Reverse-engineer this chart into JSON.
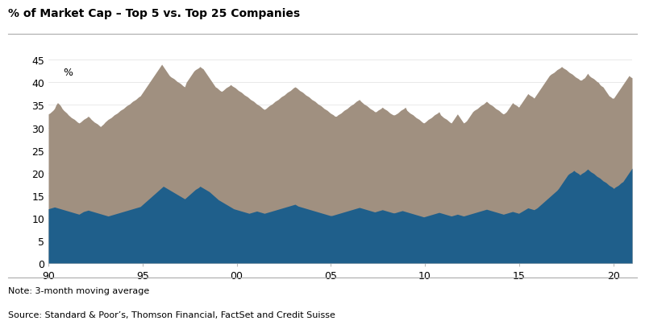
{
  "title": "% of Market Cap – Top 5 vs. Top 25 Companies",
  "ylabel_text": "%",
  "note": "Note: 3-month moving average",
  "source": "Source: Standard & Poor’s, Thomson Financial, FactSet and Credit Suisse",
  "top5_color": "#1f5f8b",
  "top25_color": "#a09080",
  "background_color": "#ffffff",
  "xlim": [
    1990.0,
    2021.0
  ],
  "ylim": [
    0,
    46
  ],
  "yticks": [
    0,
    5,
    10,
    15,
    20,
    25,
    30,
    35,
    40,
    45
  ],
  "xticks": [
    1990,
    1995,
    2000,
    2005,
    2010,
    2015,
    2020
  ],
  "xticklabels": [
    "90",
    "95",
    "00",
    "05",
    "10",
    "15",
    "20"
  ],
  "top25_monthly": [
    33.0,
    33.2,
    33.5,
    33.8,
    34.2,
    35.0,
    35.5,
    35.2,
    34.8,
    34.2,
    33.8,
    33.5,
    33.2,
    32.8,
    32.5,
    32.2,
    32.0,
    31.8,
    31.5,
    31.2,
    31.0,
    31.2,
    31.5,
    31.8,
    32.0,
    32.2,
    32.5,
    32.2,
    31.8,
    31.5,
    31.2,
    31.0,
    30.8,
    30.5,
    30.2,
    30.5,
    30.8,
    31.2,
    31.5,
    31.8,
    32.0,
    32.2,
    32.5,
    32.8,
    33.0,
    33.2,
    33.5,
    33.8,
    34.0,
    34.2,
    34.5,
    34.8,
    35.0,
    35.2,
    35.5,
    35.8,
    36.0,
    36.2,
    36.5,
    36.8,
    37.0,
    37.5,
    38.0,
    38.5,
    39.0,
    39.5,
    40.0,
    40.5,
    41.0,
    41.5,
    42.0,
    42.5,
    43.0,
    43.5,
    44.0,
    43.5,
    43.0,
    42.5,
    42.0,
    41.5,
    41.2,
    41.0,
    40.8,
    40.5,
    40.2,
    40.0,
    39.8,
    39.5,
    39.2,
    39.0,
    40.0,
    40.5,
    41.0,
    41.5,
    42.0,
    42.5,
    42.8,
    43.0,
    43.2,
    43.5,
    43.2,
    43.0,
    42.5,
    42.0,
    41.5,
    41.0,
    40.5,
    40.0,
    39.5,
    39.0,
    38.8,
    38.5,
    38.2,
    38.0,
    38.2,
    38.5,
    38.8,
    39.0,
    39.2,
    39.5,
    39.2,
    39.0,
    38.8,
    38.5,
    38.2,
    38.0,
    37.8,
    37.5,
    37.2,
    37.0,
    36.8,
    36.5,
    36.2,
    36.0,
    35.8,
    35.5,
    35.2,
    35.0,
    34.8,
    34.5,
    34.2,
    34.0,
    34.2,
    34.5,
    34.8,
    35.0,
    35.2,
    35.5,
    35.8,
    36.0,
    36.2,
    36.5,
    36.8,
    37.0,
    37.2,
    37.5,
    37.8,
    38.0,
    38.2,
    38.5,
    38.8,
    39.0,
    38.8,
    38.5,
    38.2,
    38.0,
    37.8,
    37.5,
    37.2,
    37.0,
    36.8,
    36.5,
    36.2,
    36.0,
    35.8,
    35.5,
    35.2,
    35.0,
    34.8,
    34.5,
    34.2,
    34.0,
    33.8,
    33.5,
    33.2,
    33.0,
    32.8,
    32.5,
    32.5,
    32.8,
    33.0,
    33.2,
    33.5,
    33.8,
    34.0,
    34.2,
    34.5,
    34.8,
    35.0,
    35.2,
    35.5,
    35.8,
    36.0,
    36.2,
    35.8,
    35.5,
    35.2,
    35.0,
    34.8,
    34.5,
    34.2,
    34.0,
    33.8,
    33.5,
    33.5,
    33.8,
    34.0,
    34.2,
    34.5,
    34.2,
    34.0,
    33.8,
    33.5,
    33.2,
    33.0,
    32.8,
    32.8,
    33.0,
    33.2,
    33.5,
    33.8,
    34.0,
    34.2,
    34.5,
    33.8,
    33.5,
    33.2,
    33.0,
    32.8,
    32.5,
    32.2,
    32.0,
    31.8,
    31.5,
    31.2,
    31.0,
    31.2,
    31.5,
    31.8,
    32.0,
    32.2,
    32.5,
    32.8,
    33.0,
    33.2,
    33.5,
    32.8,
    32.5,
    32.2,
    32.0,
    31.8,
    31.5,
    31.2,
    31.0,
    31.5,
    32.0,
    32.5,
    33.0,
    32.5,
    32.0,
    31.5,
    31.0,
    31.2,
    31.5,
    32.0,
    32.5,
    33.0,
    33.5,
    33.8,
    34.0,
    34.2,
    34.5,
    34.8,
    35.0,
    35.2,
    35.5,
    35.8,
    35.5,
    35.2,
    35.0,
    34.8,
    34.5,
    34.2,
    34.0,
    33.8,
    33.5,
    33.2,
    33.0,
    33.2,
    33.5,
    34.0,
    34.5,
    35.0,
    35.5,
    35.2,
    35.0,
    34.8,
    34.5,
    35.0,
    35.5,
    36.0,
    36.5,
    37.0,
    37.5,
    37.2,
    37.0,
    36.8,
    36.5,
    37.0,
    37.5,
    38.0,
    38.5,
    39.0,
    39.5,
    40.0,
    40.5,
    41.0,
    41.5,
    41.8,
    42.0,
    42.2,
    42.5,
    42.8,
    43.0,
    43.2,
    43.5,
    43.2,
    43.0,
    42.8,
    42.5,
    42.2,
    42.0,
    41.8,
    41.5,
    41.2,
    41.0,
    40.8,
    40.5,
    40.5,
    40.8,
    41.0,
    41.5,
    42.0,
    41.5,
    41.2,
    41.0,
    40.8,
    40.5,
    40.2,
    40.0,
    39.5,
    39.2,
    39.0,
    38.5,
    38.0,
    37.5,
    37.0,
    36.8,
    36.5,
    36.5,
    37.0,
    37.5,
    38.0,
    38.5,
    39.0,
    39.5,
    40.0,
    40.5,
    41.0,
    41.5,
    41.2,
    41.0
  ],
  "top5_monthly": [
    12.0,
    12.1,
    12.2,
    12.3,
    12.4,
    12.3,
    12.2,
    12.1,
    12.0,
    11.9,
    11.8,
    11.7,
    11.6,
    11.5,
    11.4,
    11.3,
    11.2,
    11.1,
    11.0,
    10.9,
    10.8,
    11.0,
    11.2,
    11.4,
    11.5,
    11.6,
    11.7,
    11.6,
    11.5,
    11.4,
    11.3,
    11.2,
    11.1,
    11.0,
    10.9,
    10.8,
    10.7,
    10.6,
    10.5,
    10.4,
    10.5,
    10.6,
    10.7,
    10.8,
    10.9,
    11.0,
    11.1,
    11.2,
    11.3,
    11.4,
    11.5,
    11.6,
    11.7,
    11.8,
    11.9,
    12.0,
    12.1,
    12.2,
    12.3,
    12.4,
    12.5,
    12.8,
    13.1,
    13.4,
    13.7,
    14.0,
    14.3,
    14.6,
    14.9,
    15.2,
    15.5,
    15.8,
    16.1,
    16.4,
    16.7,
    17.0,
    16.8,
    16.6,
    16.4,
    16.2,
    16.0,
    15.8,
    15.6,
    15.4,
    15.2,
    15.0,
    14.8,
    14.6,
    14.4,
    14.2,
    14.5,
    14.8,
    15.1,
    15.4,
    15.7,
    16.0,
    16.3,
    16.5,
    16.7,
    17.0,
    16.8,
    16.6,
    16.4,
    16.2,
    16.0,
    15.8,
    15.5,
    15.2,
    14.9,
    14.6,
    14.3,
    14.0,
    13.8,
    13.6,
    13.4,
    13.2,
    13.0,
    12.8,
    12.6,
    12.4,
    12.2,
    12.0,
    11.9,
    11.8,
    11.7,
    11.6,
    11.5,
    11.4,
    11.3,
    11.2,
    11.1,
    11.0,
    11.1,
    11.2,
    11.3,
    11.4,
    11.5,
    11.4,
    11.3,
    11.2,
    11.1,
    11.0,
    11.1,
    11.2,
    11.3,
    11.4,
    11.5,
    11.6,
    11.7,
    11.8,
    11.9,
    12.0,
    12.1,
    12.2,
    12.3,
    12.4,
    12.5,
    12.6,
    12.7,
    12.8,
    12.9,
    13.0,
    12.8,
    12.6,
    12.5,
    12.4,
    12.3,
    12.2,
    12.1,
    12.0,
    11.9,
    11.8,
    11.7,
    11.6,
    11.5,
    11.4,
    11.3,
    11.2,
    11.1,
    11.0,
    10.9,
    10.8,
    10.7,
    10.6,
    10.5,
    10.5,
    10.6,
    10.7,
    10.8,
    10.9,
    11.0,
    11.1,
    11.2,
    11.3,
    11.4,
    11.5,
    11.6,
    11.7,
    11.8,
    11.9,
    12.0,
    12.1,
    12.2,
    12.3,
    12.2,
    12.1,
    12.0,
    11.9,
    11.8,
    11.7,
    11.6,
    11.5,
    11.4,
    11.3,
    11.4,
    11.5,
    11.6,
    11.7,
    11.8,
    11.7,
    11.6,
    11.5,
    11.4,
    11.3,
    11.2,
    11.1,
    11.1,
    11.2,
    11.3,
    11.4,
    11.5,
    11.6,
    11.5,
    11.4,
    11.3,
    11.2,
    11.1,
    11.0,
    10.9,
    10.8,
    10.7,
    10.6,
    10.5,
    10.4,
    10.3,
    10.2,
    10.3,
    10.4,
    10.5,
    10.6,
    10.7,
    10.8,
    10.9,
    11.0,
    11.1,
    11.2,
    11.1,
    11.0,
    10.9,
    10.8,
    10.7,
    10.6,
    10.5,
    10.4,
    10.5,
    10.6,
    10.7,
    10.8,
    10.7,
    10.6,
    10.5,
    10.4,
    10.5,
    10.6,
    10.7,
    10.8,
    10.9,
    11.0,
    11.1,
    11.2,
    11.3,
    11.4,
    11.5,
    11.6,
    11.7,
    11.8,
    11.9,
    11.8,
    11.7,
    11.6,
    11.5,
    11.4,
    11.3,
    11.2,
    11.1,
    11.0,
    10.9,
    10.8,
    10.9,
    11.0,
    11.1,
    11.2,
    11.3,
    11.4,
    11.3,
    11.2,
    11.1,
    11.0,
    11.2,
    11.4,
    11.6,
    11.8,
    12.0,
    12.2,
    12.1,
    12.0,
    11.9,
    11.8,
    12.0,
    12.2,
    12.5,
    12.8,
    13.1,
    13.4,
    13.7,
    14.0,
    14.3,
    14.6,
    14.9,
    15.2,
    15.5,
    15.8,
    16.1,
    16.5,
    17.0,
    17.5,
    18.0,
    18.5,
    19.0,
    19.5,
    19.8,
    20.0,
    20.2,
    20.5,
    20.2,
    20.0,
    19.8,
    19.5,
    19.8,
    20.0,
    20.2,
    20.5,
    20.8,
    20.5,
    20.2,
    20.0,
    19.8,
    19.5,
    19.2,
    19.0,
    18.8,
    18.5,
    18.2,
    18.0,
    17.8,
    17.5,
    17.2,
    17.0,
    16.8,
    16.5,
    16.8,
    17.0,
    17.2,
    17.5,
    17.8,
    18.0,
    18.5,
    19.0,
    19.5,
    20.0,
    20.5,
    21.0
  ]
}
